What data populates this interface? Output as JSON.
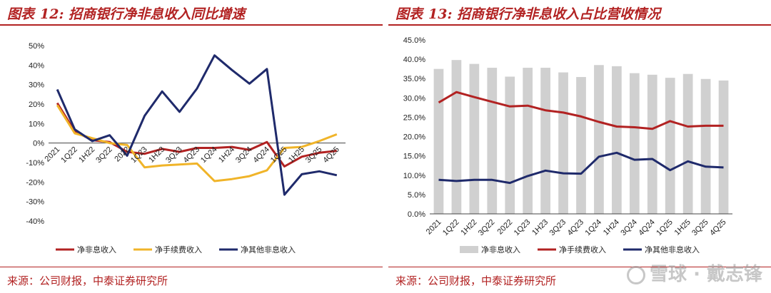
{
  "left": {
    "figure_label": "图表",
    "figure_num": "12:",
    "figure_title": "招商银行净非息收入同比增速",
    "source": "来源：公司财报，中泰证券研究所"
  },
  "right": {
    "figure_label": "图表",
    "figure_num": "13:",
    "figure_title": "招商银行净非息收入占比营收情况",
    "source": "来源：公司财报，中泰证券研究所"
  },
  "watermark": "雪球 · 戴志锋",
  "chart_data": [
    {
      "type": "line",
      "title": "招商银行净非息收入同比增速",
      "categories": [
        "2021",
        "1Q22",
        "1H22",
        "3Q22",
        "2022",
        "1Q23",
        "1H23",
        "3Q23",
        "4Q23",
        "1Q24",
        "1H24",
        "3Q24",
        "4Q24",
        "1Q25",
        "1H25",
        "3Q25",
        "4Q25"
      ],
      "yticks": [
        "50%",
        "40%",
        "30%",
        "20%",
        "10%",
        "0%",
        "-10%",
        "-20%",
        "-30%",
        "-40%"
      ],
      "ylim": [
        -40,
        50
      ],
      "unit": "%",
      "grid": false,
      "legend_position": "bottom",
      "series": [
        {
          "name": "净非息收入",
          "color": "#b22222",
          "values": [
            20.5,
            6.0,
            1.5,
            0.5,
            -4.5,
            -5.5,
            -3.0,
            -4.5,
            -2.5,
            -2.5,
            -2.0,
            -3.5,
            0.5,
            -12.0,
            -7.0,
            -5.0,
            -4.0
          ]
        },
        {
          "name": "净手续费收入",
          "color": "#f0b429",
          "values": [
            19.5,
            5.0,
            2.5,
            0.0,
            -1.0,
            -12.5,
            -11.5,
            -11.0,
            -10.5,
            -19.5,
            -18.5,
            -17.0,
            -14.0,
            -2.5,
            -2.0,
            1.0,
            4.5
          ]
        },
        {
          "name": "净其他非息收入",
          "color": "#1f2a6b",
          "values": [
            27.5,
            7.0,
            1.0,
            4.0,
            -6.5,
            14.0,
            26.5,
            16.0,
            28.0,
            45.0,
            37.5,
            30.5,
            38.0,
            -26.5,
            -16.0,
            -14.5,
            -16.5
          ]
        }
      ]
    },
    {
      "type": "bar+line",
      "title": "招商银行净非息收入占比营收情况",
      "categories": [
        "2021",
        "1Q22",
        "1H22",
        "3Q22",
        "2022",
        "1Q23",
        "1H23",
        "3Q23",
        "4Q23",
        "1Q24",
        "1H24",
        "3Q24",
        "4Q24",
        "1Q25",
        "1H25",
        "3Q25",
        "4Q25"
      ],
      "yticks": [
        "45.0%",
        "40.0%",
        "35.0%",
        "30.0%",
        "25.0%",
        "20.0%",
        "15.0%",
        "10.0%",
        "5.0%",
        "0.0%"
      ],
      "ylim": [
        0,
        45
      ],
      "unit": "%",
      "grid": false,
      "legend_position": "bottom",
      "series": [
        {
          "name": "净非息收入",
          "type": "bar",
          "color": "#d0d0d0",
          "values": [
            37.5,
            39.8,
            38.8,
            37.8,
            35.5,
            37.8,
            37.8,
            36.6,
            35.4,
            38.5,
            38.2,
            36.4,
            36.0,
            35.2,
            36.2,
            34.9,
            34.5
          ]
        },
        {
          "name": "净手续费收入",
          "type": "line",
          "color": "#b22222",
          "values": [
            28.8,
            31.5,
            30.2,
            29.0,
            27.8,
            28.0,
            26.8,
            26.2,
            25.2,
            23.8,
            22.6,
            22.4,
            22.0,
            24.0,
            22.6,
            22.8,
            22.8
          ]
        },
        {
          "name": "净其他非息收入",
          "type": "line",
          "color": "#1f2a6b",
          "values": [
            8.8,
            8.5,
            8.8,
            8.8,
            8.0,
            9.8,
            11.2,
            10.5,
            10.4,
            14.8,
            15.8,
            14.0,
            14.2,
            11.3,
            13.6,
            12.2,
            12.0
          ]
        }
      ]
    }
  ]
}
